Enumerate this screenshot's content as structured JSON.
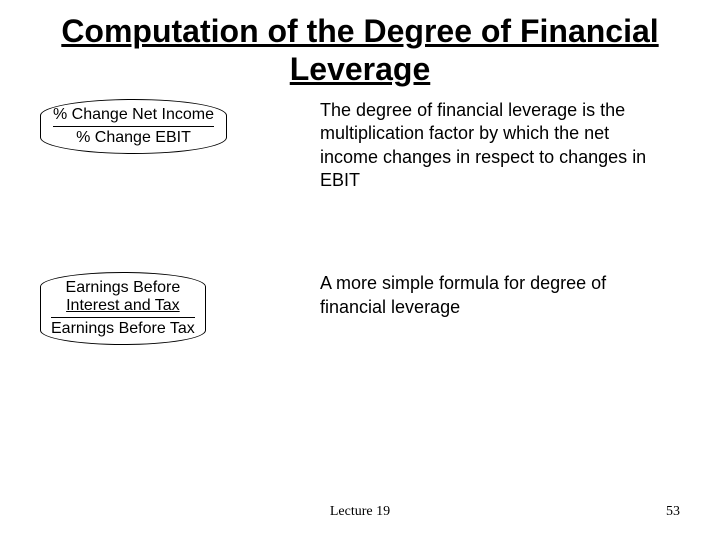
{
  "title": "Computation of the Degree of Financial Leverage",
  "formula1": {
    "numerator": "% Change Net Income",
    "denominator": "% Change EBIT"
  },
  "description1": "The degree of financial leverage is the multiplication factor by which the net income changes in respect to changes in EBIT",
  "formula2": {
    "numerator_line1": "Earnings Before",
    "numerator_line2": "Interest and Tax",
    "denominator": "Earnings Before Tax"
  },
  "description2": "A more simple formula for degree of financial leverage",
  "footer": {
    "lecture": "Lecture 19",
    "page": "53"
  },
  "colors": {
    "background": "#ffffff",
    "text": "#000000"
  }
}
